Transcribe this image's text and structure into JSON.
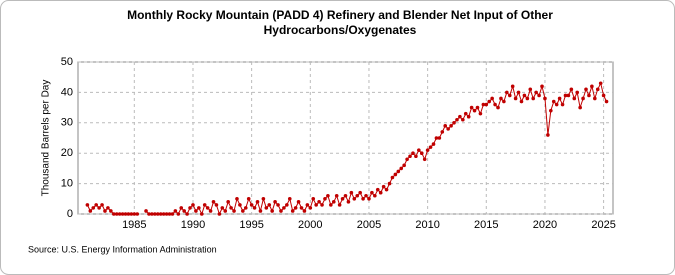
{
  "chart_data": {
    "type": "line",
    "title": [
      "Monthly Rocky Mountain (PADD 4) Refinery and Blender Net Input of Other",
      "Hydrocarbons/Oxygenates"
    ],
    "y_label": "Thousand Barrels per Day",
    "source": "Source: U.S. Energy Information Administration",
    "color": "#c00000",
    "grid": true,
    "xlim": [
      1980.2,
      2025.8
    ],
    "xticks": [
      1985,
      1990,
      1995,
      2000,
      2005,
      2010,
      2015,
      2020,
      2025
    ],
    "ylim": [
      0,
      50
    ],
    "yticks": [
      0,
      10,
      20,
      30,
      40,
      50
    ],
    "x": [
      1981,
      1981.25,
      1981.5,
      1981.75,
      1982,
      1982.25,
      1982.5,
      1982.75,
      1983,
      1983.25,
      1983.5,
      1983.75,
      1984,
      1984.25,
      1984.5,
      1984.75,
      1985,
      1985.25,
      1985.5,
      1985.75,
      1986,
      1986.25,
      1986.5,
      1986.75,
      1987,
      1987.25,
      1987.5,
      1987.75,
      1988,
      1988.25,
      1988.5,
      1988.75,
      1989,
      1989.25,
      1989.5,
      1989.75,
      1990,
      1990.25,
      1990.5,
      1990.75,
      1991,
      1991.25,
      1991.5,
      1991.75,
      1992,
      1992.25,
      1992.5,
      1992.75,
      1993,
      1993.25,
      1993.5,
      1993.75,
      1994,
      1994.25,
      1994.5,
      1994.75,
      1995,
      1995.25,
      1995.5,
      1995.75,
      1996,
      1996.25,
      1996.5,
      1996.75,
      1997,
      1997.25,
      1997.5,
      1997.75,
      1998,
      1998.25,
      1998.5,
      1998.75,
      1999,
      1999.25,
      1999.5,
      1999.75,
      2000,
      2000.25,
      2000.5,
      2000.75,
      2001,
      2001.25,
      2001.5,
      2001.75,
      2002,
      2002.25,
      2002.5,
      2002.75,
      2003,
      2003.25,
      2003.5,
      2003.75,
      2004,
      2004.25,
      2004.5,
      2004.75,
      2005,
      2005.25,
      2005.5,
      2005.75,
      2006,
      2006.25,
      2006.5,
      2006.75,
      2007,
      2007.25,
      2007.5,
      2007.75,
      2008,
      2008.25,
      2008.5,
      2008.75,
      2009,
      2009.25,
      2009.5,
      2009.75,
      2010,
      2010.25,
      2010.5,
      2010.75,
      2011,
      2011.25,
      2011.5,
      2011.75,
      2012,
      2012.25,
      2012.5,
      2012.75,
      2013,
      2013.25,
      2013.5,
      2013.75,
      2014,
      2014.25,
      2014.5,
      2014.75,
      2015,
      2015.25,
      2015.5,
      2015.75,
      2016,
      2016.25,
      2016.5,
      2016.75,
      2017,
      2017.25,
      2017.5,
      2017.75,
      2018,
      2018.25,
      2018.5,
      2018.75,
      2019,
      2019.25,
      2019.5,
      2019.75,
      2020,
      2020.25,
      2020.5,
      2020.75,
      2021,
      2021.25,
      2021.5,
      2021.75,
      2022,
      2022.25,
      2022.5,
      2022.75,
      2023,
      2023.25,
      2023.5,
      2023.75,
      2024,
      2024.25,
      2024.5,
      2024.75,
      2025,
      2025.25
    ],
    "values": [
      3,
      1,
      2,
      3,
      2,
      3,
      1,
      2,
      1,
      0,
      0,
      0,
      0,
      0,
      0,
      0,
      0,
      0,
      null,
      null,
      1,
      0,
      0,
      0,
      0,
      0,
      0,
      0,
      0,
      0,
      1,
      0,
      2,
      1,
      0,
      2,
      3,
      1,
      2,
      0,
      3,
      2,
      1,
      4,
      3,
      0,
      2,
      1,
      4,
      2,
      1,
      5,
      3,
      1,
      2,
      5,
      3,
      2,
      4,
      1,
      5,
      2,
      3,
      1,
      4,
      3,
      1,
      2,
      3,
      5,
      1,
      2,
      4,
      2,
      1,
      3,
      2,
      5,
      3,
      4,
      3,
      5,
      6,
      3,
      4,
      6,
      3,
      5,
      6,
      4,
      7,
      5,
      6,
      7,
      5,
      6,
      5,
      7,
      6,
      8,
      7,
      9,
      8,
      10,
      12,
      13,
      14,
      15,
      16,
      18,
      19,
      20,
      19,
      21,
      20,
      18,
      21,
      22,
      23,
      25,
      25,
      27,
      29,
      28,
      29,
      30,
      31,
      32,
      31,
      33,
      32,
      35,
      34,
      35,
      33,
      36,
      36,
      37,
      38,
      36,
      35,
      38,
      37,
      40,
      39,
      42,
      38,
      40,
      37,
      39,
      38,
      41,
      38,
      40,
      39,
      42,
      38,
      26,
      34,
      37,
      36,
      38,
      36,
      39,
      39,
      41,
      38,
      40,
      35,
      38,
      41,
      39,
      42,
      38,
      41,
      43,
      39,
      37
    ]
  }
}
